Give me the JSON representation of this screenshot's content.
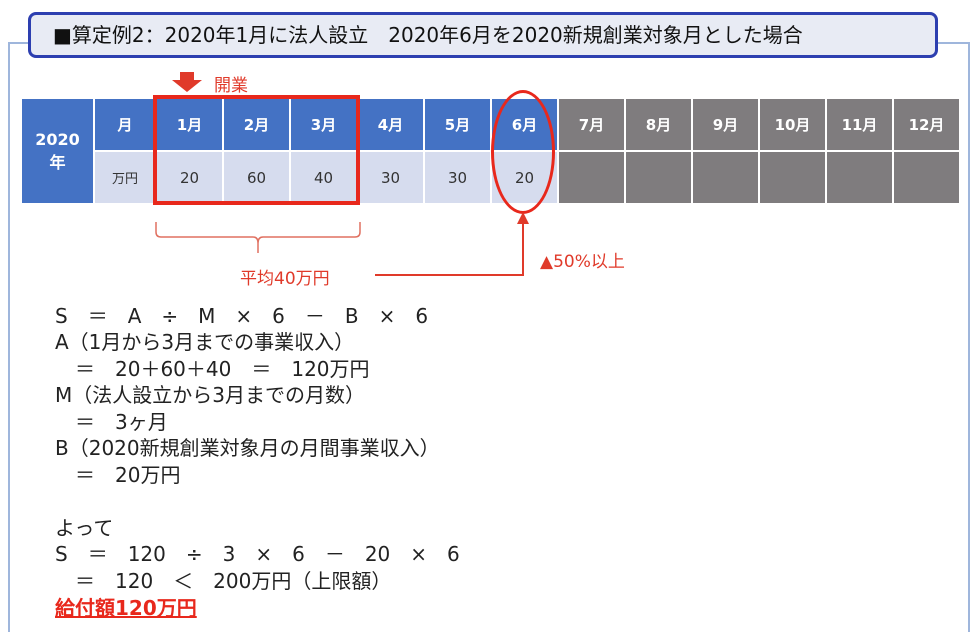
{
  "title": "■算定例2：2020年1月に法人設立　2020年6月を2020新規創業対象月とした場合",
  "table": {
    "year": "2020\n年",
    "month_label": "月",
    "unit_label": "万円",
    "months": [
      "1月",
      "2月",
      "3月",
      "4月",
      "5月",
      "6月",
      "7月",
      "8月",
      "9月",
      "10月",
      "11月",
      "12月"
    ],
    "values": [
      "20",
      "60",
      "40",
      "30",
      "30",
      "20",
      "",
      "",
      "",
      "",
      "",
      ""
    ]
  },
  "annotations": {
    "open": "開業",
    "average": "平均40万円",
    "drop": "▲50%以上"
  },
  "colors": {
    "header": "#4472c4",
    "value_cell": "#d6dcee",
    "future": "#7f7c7e",
    "accent": "#e03a2a"
  },
  "formula": [
    "S　＝　A　÷　M　×　6　－　B　×　6",
    "A（1月から3月までの事業収入）",
    "　＝　20＋60＋40　＝　120万円",
    "M（法人設立から3月までの月数）",
    "　＝　3ヶ月",
    "B（2020新規創業対象月の月間事業収入）",
    "　＝　20万円",
    "よって",
    "S　＝　120　÷　3　×　6　－　20　×　6",
    "　＝　120　＜　200万円（上限額）"
  ],
  "result": "給付額120万円"
}
